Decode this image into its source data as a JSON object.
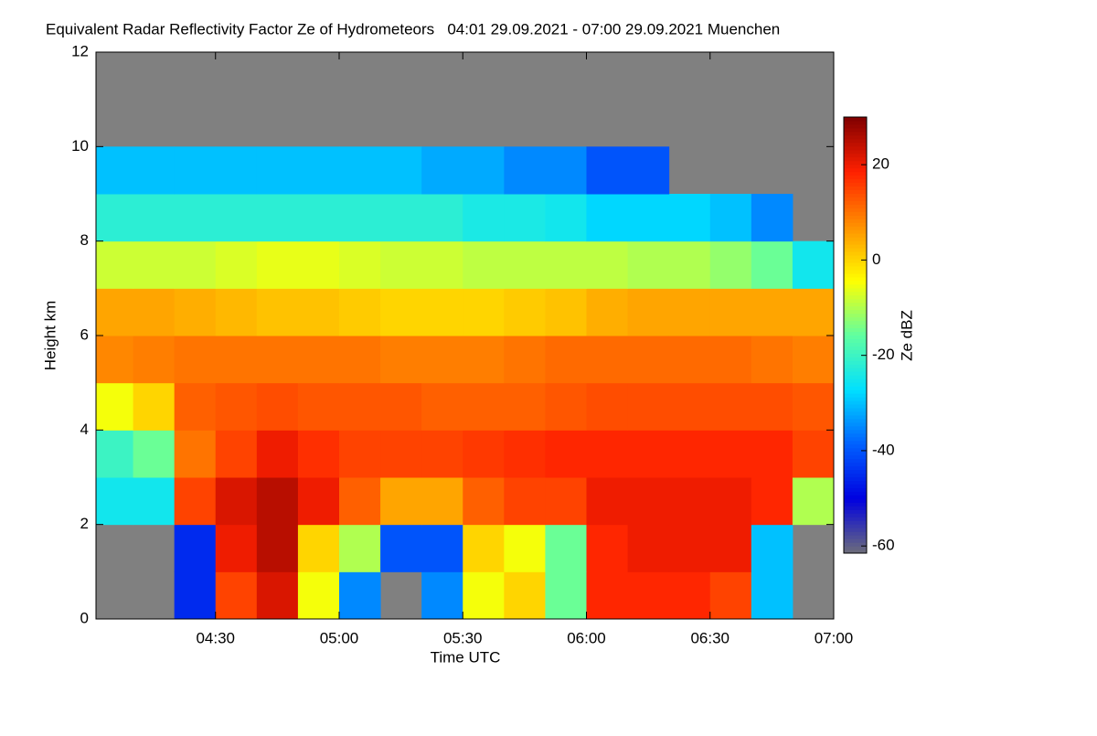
{
  "chart_data": {
    "type": "heatmap",
    "title": "Equivalent Radar Reflectivity Factor Ze of Hydrometeors   04:01 29.09.2021 - 07:00 29.09.2021 Muenchen",
    "x_label": "Time UTC",
    "y_label": "Height km",
    "colorbar_label": "Ze dBZ",
    "x": [
      "04:01",
      "04:10",
      "04:20",
      "04:30",
      "04:40",
      "04:50",
      "05:00",
      "05:10",
      "05:20",
      "05:30",
      "05:40",
      "05:50",
      "06:00",
      "06:10",
      "06:20",
      "06:30",
      "06:40",
      "06:50",
      "07:00"
    ],
    "y": [
      0,
      1,
      2,
      3,
      4,
      5,
      6,
      7,
      8,
      9,
      10,
      11,
      12
    ],
    "xlim": [
      "04:01",
      "07:00"
    ],
    "xticks": [
      "04:30",
      "05:00",
      "05:30",
      "06:00",
      "06:30",
      "07:00"
    ],
    "ylim": [
      0,
      12
    ],
    "yticks": [
      0,
      2,
      4,
      6,
      8,
      10,
      12
    ],
    "clim": [
      -61.5,
      30
    ],
    "cticks": [
      20,
      0,
      -20,
      -40,
      -60
    ],
    "colormap": [
      "#6e6e7a",
      "#0000e0",
      "#0060ff",
      "#00e0ff",
      "#60ffa0",
      "#ffff00",
      "#ff9000",
      "#ff2000",
      "#800000"
    ],
    "missing_color": "#808080",
    "z": [
      [
        null,
        null,
        -45,
        15,
        22,
        -5,
        -35,
        null,
        -35,
        -5,
        0,
        -15,
        18,
        18,
        18,
        15,
        -30,
        null
      ],
      [
        null,
        null,
        -45,
        20,
        25,
        0,
        -10,
        -40,
        -40,
        0,
        -5,
        -15,
        18,
        20,
        20,
        20,
        -30,
        null
      ],
      [
        -25,
        -25,
        15,
        22,
        25,
        20,
        12,
        5,
        5,
        12,
        15,
        15,
        20,
        20,
        20,
        20,
        18,
        -10
      ],
      [
        -20,
        -15,
        10,
        15,
        20,
        17,
        15,
        15,
        15,
        16,
        17,
        18,
        18,
        18,
        18,
        18,
        18,
        15
      ],
      [
        -5,
        0,
        12,
        13,
        14,
        13,
        13,
        13,
        12,
        12,
        12,
        13,
        14,
        14,
        14,
        14,
        14,
        13
      ],
      [
        8,
        9,
        10,
        10,
        10,
        10,
        10,
        9,
        9,
        9,
        10,
        11,
        11,
        11,
        11,
        11,
        10,
        9
      ],
      [
        5,
        5,
        4,
        3,
        2,
        2,
        1,
        0,
        0,
        0,
        1,
        2,
        4,
        5,
        5,
        5,
        5,
        5
      ],
      [
        -8,
        -8,
        -8,
        -7,
        -6,
        -6,
        -7,
        -8,
        -8,
        -9,
        -9,
        -9,
        -9,
        -10,
        -10,
        -12,
        -15,
        -25
      ],
      [
        -22,
        -22,
        -22,
        -22,
        -22,
        -22,
        -22,
        -22,
        -22,
        -24,
        -24,
        -25,
        -28,
        -28,
        -28,
        -30,
        -35,
        null
      ],
      [
        -30,
        -30,
        -30,
        -30,
        -30,
        -30,
        -30,
        -30,
        -32,
        -32,
        -35,
        -35,
        -40,
        -40,
        null,
        null,
        null,
        null
      ],
      [
        null,
        null,
        null,
        null,
        null,
        null,
        null,
        null,
        null,
        null,
        null,
        null,
        null,
        null,
        null,
        null,
        null,
        null
      ],
      [
        null,
        null,
        null,
        null,
        null,
        null,
        null,
        null,
        null,
        null,
        null,
        null,
        null,
        null,
        null,
        null,
        null,
        null
      ]
    ]
  }
}
